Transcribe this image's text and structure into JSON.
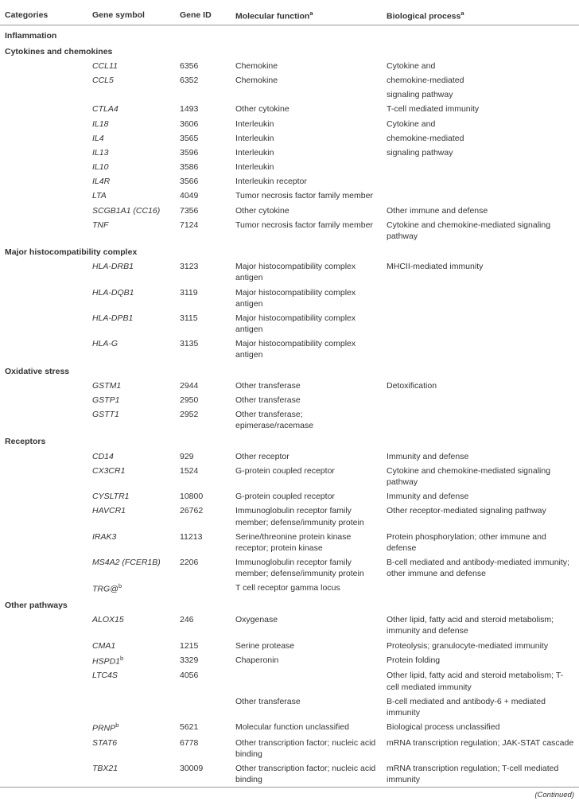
{
  "headers": {
    "categories": "Categories",
    "gene_symbol": "Gene symbol",
    "gene_id": "Gene ID",
    "molecular_function": "Molecular function",
    "biological_process": "Biological process"
  },
  "footnote_sup": "a",
  "footer_note": "(Continued)",
  "sections": [
    {
      "title": "Inflammation",
      "subsections": [
        {
          "title": "Cytokines and chemokines",
          "rows": [
            {
              "symbol": "CCL11",
              "id": "6356",
              "func": "Chemokine",
              "bio": "Cytokine and"
            },
            {
              "symbol": "CCL5",
              "id": "6352",
              "func": "Chemokine",
              "bio": "chemokine-mediated"
            },
            {
              "symbol": "",
              "id": "",
              "func": "",
              "bio": "signaling pathway"
            },
            {
              "symbol": "CTLA4",
              "id": "1493",
              "func": "Other cytokine",
              "bio": "T-cell mediated immunity"
            },
            {
              "symbol": "IL18",
              "id": "3606",
              "func": "Interleukin",
              "bio": "Cytokine and"
            },
            {
              "symbol": "IL4",
              "id": "3565",
              "func": "Interleukin",
              "bio": "chemokine-mediated"
            },
            {
              "symbol": "IL13",
              "id": "3596",
              "func": "Interleukin",
              "bio": "signaling pathway"
            },
            {
              "symbol": "IL10",
              "id": "3586",
              "func": "Interleukin",
              "bio": ""
            },
            {
              "symbol": "IL4R",
              "id": "3566",
              "func": "Interleukin receptor",
              "bio": ""
            },
            {
              "symbol": "LTA",
              "id": "4049",
              "func": "Tumor necrosis factor family member",
              "bio": ""
            },
            {
              "symbol": "SCGB1A1",
              "symbol_suffix": " (CC16)",
              "id": "7356",
              "func": "Other cytokine",
              "bio": "Other immune and defense"
            },
            {
              "symbol": "TNF",
              "id": "7124",
              "func": "Tumor necrosis factor family member",
              "bio": "Cytokine and chemokine-mediated signaling pathway"
            }
          ]
        },
        {
          "title": "Major histocompatibility complex",
          "rows": [
            {
              "symbol": "HLA-DRB1",
              "id": "3123",
              "func": "Major histocompatibility complex antigen",
              "bio": "MHCII-mediated immunity"
            },
            {
              "symbol": "HLA-DQB1",
              "id": "3119",
              "func": "Major histocompatibility complex antigen",
              "bio": ""
            },
            {
              "symbol": "HLA-DPB1",
              "id": "3115",
              "func": "Major histocompatibility complex antigen",
              "bio": ""
            },
            {
              "symbol": "HLA-G",
              "id": "3135",
              "func": "Major histocompatibility complex antigen",
              "bio": ""
            }
          ]
        },
        {
          "title": "Oxidative stress",
          "rows": [
            {
              "symbol": "GSTM1",
              "id": "2944",
              "func": "Other transferase",
              "bio": "Detoxification"
            },
            {
              "symbol": "GSTP1",
              "id": "2950",
              "func": "Other transferase",
              "bio": ""
            },
            {
              "symbol": "GSTT1",
              "id": "2952",
              "func": "Other transferase; epimerase/racemase",
              "bio": ""
            }
          ]
        },
        {
          "title": "Receptors",
          "rows": [
            {
              "symbol": "CD14",
              "id": "929",
              "func": "Other receptor",
              "bio": "Immunity and defense"
            },
            {
              "symbol": "CX3CR1",
              "id": "1524",
              "func": "G-protein coupled receptor",
              "bio": "Cytokine and chemokine-mediated signaling pathway"
            },
            {
              "symbol": "CYSLTR1",
              "id": "10800",
              "func": "G-protein coupled receptor",
              "bio": "Immunity and defense"
            },
            {
              "symbol": "HAVCR1",
              "id": "26762",
              "func": "Immunoglobulin receptor family member; defense/immunity protein",
              "bio": "Other receptor-mediated signaling pathway"
            },
            {
              "symbol": "IRAK3",
              "id": "11213",
              "func": "Serine/threonine protein kinase receptor; protein kinase",
              "bio": "Protein phosphorylation; other immune and defense"
            },
            {
              "symbol": "MS4A2",
              "symbol_suffix": " (FCER1B)",
              "id": "2206",
              "func": "Immunoglobulin receptor family member; defense/immunity protein",
              "bio": "B-cell mediated and antibody-mediated immunity; other  immune and defense"
            },
            {
              "symbol": "TRG@",
              "symbol_sup": "b",
              "id": "",
              "func": "T cell receptor gamma locus",
              "bio": ""
            }
          ]
        },
        {
          "title": "Other pathways",
          "rows": [
            {
              "symbol": "ALOX15",
              "id": "246",
              "func": "Oxygenase",
              "bio": "Other lipid, fatty acid and steroid metabolism; immunity and defense"
            },
            {
              "symbol": "CMA1",
              "id": "1215",
              "func": "Serine protease",
              "bio": "Proteolysis; granulocyte-mediated immunity"
            },
            {
              "symbol": "HSPD1",
              "symbol_sup": "b",
              "id": "3329",
              "func": "Chaperonin",
              "bio": "Protein folding"
            },
            {
              "symbol": "LTC4S",
              "id": "4056",
              "func": "",
              "bio": "Other lipid, fatty acid and  steroid metabolism; T-cell mediated immunity"
            },
            {
              "symbol": "",
              "id": "",
              "func": "Other transferase",
              "bio": "B-cell mediated and antibody-6 + mediated immunity"
            },
            {
              "symbol": "PRNP",
              "symbol_sup": "b",
              "id": "5621",
              "func": "Molecular function unclassified",
              "bio": "Biological process unclassified"
            },
            {
              "symbol": "STAT6",
              "id": "6778",
              "func": "Other transcription factor; nucleic acid binding",
              "bio": "mRNA transcription regulation; JAK-STAT cascade"
            },
            {
              "symbol": "TBX21",
              "id": "30009",
              "func": "Other transcription factor; nucleic acid binding",
              "bio": "mRNA transcription regulation;  T-cell mediated immunity"
            }
          ]
        }
      ]
    }
  ]
}
